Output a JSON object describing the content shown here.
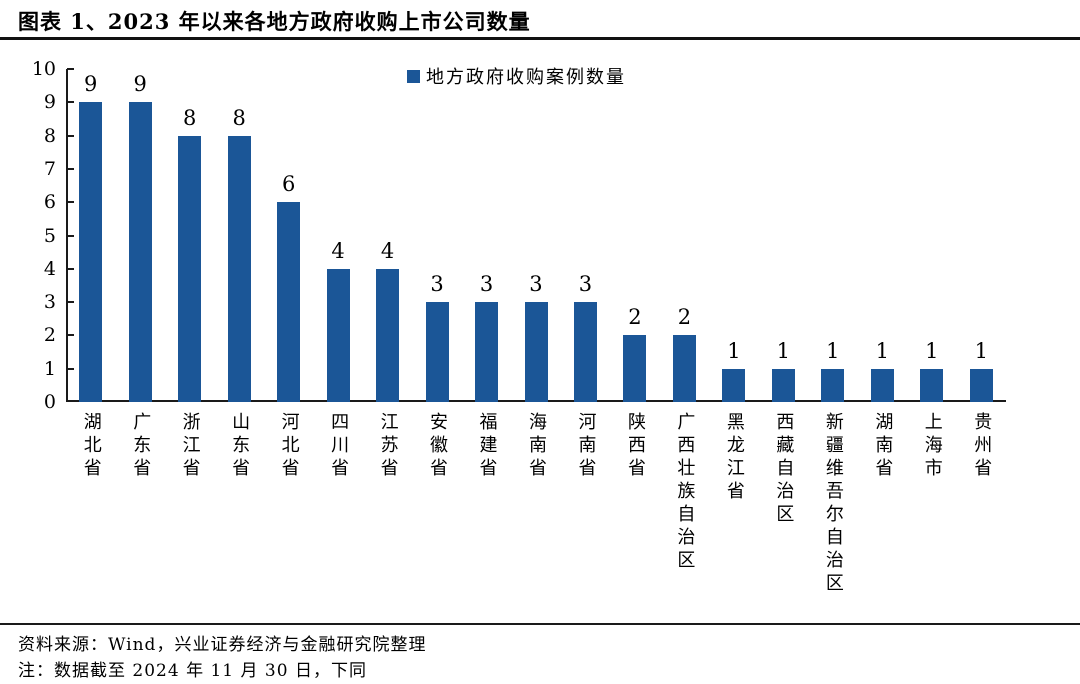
{
  "page": {
    "title": "图表 1、2023 年以来各地方政府收购上市公司数量"
  },
  "legend": {
    "label": "地方政府收购案例数量",
    "marker_color": "#1B5697"
  },
  "chart_data": {
    "type": "bar",
    "title": "图表 1、2023 年以来各地方政府收购上市公司数量",
    "legend": [
      "地方政府收购案例数量"
    ],
    "legend_position": "top-center",
    "categories": [
      "湖北省",
      "广东省",
      "浙江省",
      "山东省",
      "河北省",
      "四川省",
      "江苏省",
      "安徽省",
      "福建省",
      "海南省",
      "河南省",
      "陕西省",
      "广西壮族自治区",
      "黑龙江省",
      "西藏自治区",
      "新疆维吾尔自治区",
      "湖南省",
      "上海市",
      "贵州省"
    ],
    "values": [
      9,
      9,
      8,
      8,
      6,
      4,
      4,
      3,
      3,
      3,
      3,
      2,
      2,
      1,
      1,
      1,
      1,
      1,
      1
    ],
    "xlabel": "",
    "ylabel": "",
    "ylim": [
      0,
      10
    ],
    "ytick_step": 1,
    "grid": false,
    "value_labels": true,
    "bar_color": "#1B5697"
  },
  "footer": {
    "source": "资料来源：Wind，兴业证券经济与金融研究院整理",
    "note": "注：数据截至 2024 年 11 月 30 日，下同"
  }
}
